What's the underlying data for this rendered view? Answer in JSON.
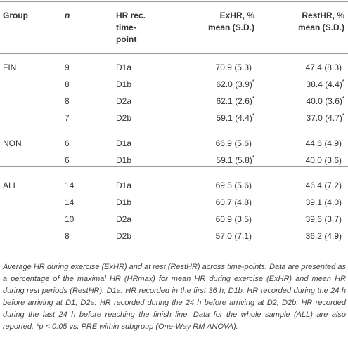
{
  "table": {
    "header": {
      "group": "Group",
      "n": "n",
      "timepoint": [
        "HR rec.",
        "time-",
        "point"
      ],
      "exhr": [
        "ExHR, %",
        "mean (S.D.)"
      ],
      "resthr": [
        "RestHR, %",
        "mean (S.D.)"
      ]
    },
    "groups": [
      {
        "name": "FIN",
        "rows": [
          [
            9,
            "D1a",
            {
              "text": "70.9 (5.3)"
            },
            {
              "text": "47.4 (8.3)"
            }
          ],
          [
            8,
            "D1b",
            {
              "text": "62.0 (3.9)",
              "sup": "*"
            },
            {
              "text": "38.4 (4.4)",
              "sup": "*"
            }
          ],
          [
            8,
            "D2a",
            {
              "text": "62.1 (2.6)",
              "sup": "*"
            },
            {
              "text": "40.0 (3.6)",
              "sup": "*"
            }
          ],
          [
            7,
            "D2b",
            {
              "text": "59.1 (4.4)",
              "sup": "*"
            },
            {
              "text": "37.0 (4.7)",
              "sup": "*"
            }
          ]
        ]
      },
      {
        "name": "NON",
        "rows": [
          [
            6,
            "D1a",
            {
              "text": "66.9 (5.6)"
            },
            {
              "text": "44.6 (4.9)"
            }
          ],
          [
            6,
            "D1b",
            {
              "text": "59.1 (5.8)",
              "sup": "*"
            },
            {
              "text": "40.0 (3.6)"
            }
          ]
        ]
      },
      {
        "name": "ALL",
        "rows": [
          [
            14,
            "D1a",
            {
              "text": "69.5 (5.6)"
            },
            {
              "text": "46.4 (7.2)"
            }
          ],
          [
            14,
            "D1b",
            {
              "text": "60.7 (4.8)"
            },
            {
              "text": "39.1 (4.0)"
            }
          ],
          [
            10,
            "D2a",
            {
              "text": "60.9 (3.5)"
            },
            {
              "text": "39.6 (3.7)"
            }
          ],
          [
            8,
            "D2b",
            {
              "text": "57.0 (7.1)"
            },
            {
              "text": "36.2 (4.9)"
            }
          ]
        ]
      }
    ]
  },
  "caption": "Average HR during exercise (ExHR) and at rest (RestHR) across time-points. Data are presented as a percentage of the maximal HR (HRmax) for mean HR during exercise (ExHR) and mean HR during rest periods (RestHR). D1a: HR recorded in the first 36 h; D1b: HR recorded during the 24 h before arriving at D1; D2a: HR recorded during the 24 h before arriving at D2; D2b: HR recorded during the last 24 h before reaching the finish line. Data for the whole sample (ALL) are also reported. *p < 0.05 vs. PRE within subgroup (One-Way RM ANOVA)."
}
